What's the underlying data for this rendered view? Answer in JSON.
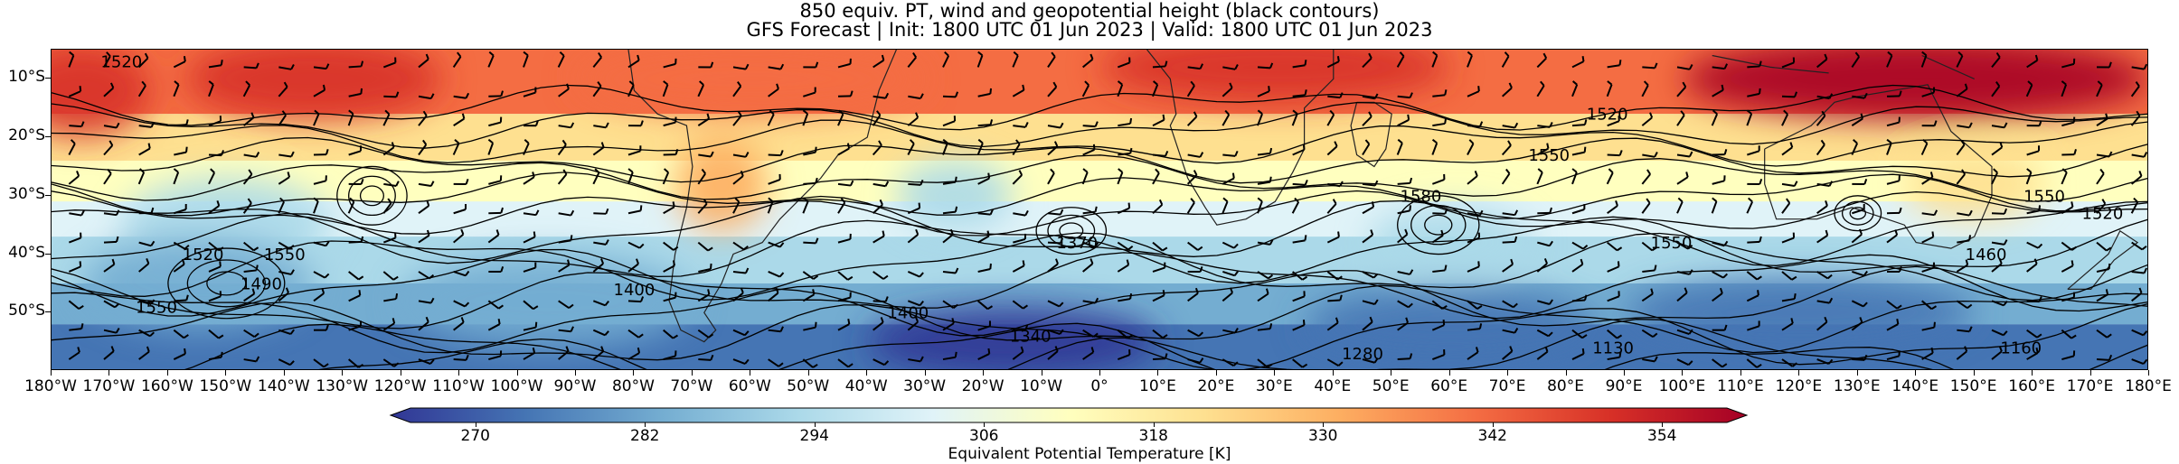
{
  "title_line1": "850 equiv. PT, wind and geopotential height (black contours)",
  "title_line2": "GFS Forecast | Init: 1800 UTC 01 Jun 2023 | Valid: 1800 UTC 01 Jun 2023",
  "map": {
    "projection": "PlateCarree",
    "lon_range": [
      -180,
      180
    ],
    "lat_range": [
      -60,
      -5
    ],
    "lat_ticks": [
      {
        "value": -10,
        "label": "10°S"
      },
      {
        "value": -20,
        "label": "20°S"
      },
      {
        "value": -30,
        "label": "30°S"
      },
      {
        "value": -40,
        "label": "40°S"
      },
      {
        "value": -50,
        "label": "50°S"
      }
    ],
    "lon_ticks": [
      {
        "value": -180,
        "label": "180°W"
      },
      {
        "value": -170,
        "label": "170°W"
      },
      {
        "value": -160,
        "label": "160°W"
      },
      {
        "value": -150,
        "label": "150°W"
      },
      {
        "value": -140,
        "label": "140°W"
      },
      {
        "value": -130,
        "label": "130°W"
      },
      {
        "value": -120,
        "label": "120°W"
      },
      {
        "value": -110,
        "label": "110°W"
      },
      {
        "value": -100,
        "label": "100°W"
      },
      {
        "value": -90,
        "label": "90°W"
      },
      {
        "value": -80,
        "label": "80°W"
      },
      {
        "value": -70,
        "label": "70°W"
      },
      {
        "value": -60,
        "label": "60°W"
      },
      {
        "value": -50,
        "label": "50°W"
      },
      {
        "value": -40,
        "label": "40°W"
      },
      {
        "value": -30,
        "label": "30°W"
      },
      {
        "value": -20,
        "label": "20°W"
      },
      {
        "value": -10,
        "label": "10°W"
      },
      {
        "value": 0,
        "label": "0°"
      },
      {
        "value": 10,
        "label": "10°E"
      },
      {
        "value": 20,
        "label": "20°E"
      },
      {
        "value": 30,
        "label": "30°E"
      },
      {
        "value": 40,
        "label": "40°E"
      },
      {
        "value": 50,
        "label": "50°E"
      },
      {
        "value": 60,
        "label": "60°E"
      },
      {
        "value": 70,
        "label": "70°E"
      },
      {
        "value": 80,
        "label": "80°E"
      },
      {
        "value": 90,
        "label": "90°E"
      },
      {
        "value": 100,
        "label": "100°E"
      },
      {
        "value": 110,
        "label": "110°E"
      },
      {
        "value": 120,
        "label": "120°E"
      },
      {
        "value": 130,
        "label": "130°E"
      },
      {
        "value": 140,
        "label": "140°E"
      },
      {
        "value": 150,
        "label": "150°E"
      },
      {
        "value": 160,
        "label": "160°E"
      },
      {
        "value": 170,
        "label": "170°E"
      },
      {
        "value": 180,
        "label": "180°E"
      }
    ],
    "contour_labels": [
      {
        "text": "1520",
        "lon": -168,
        "lat": -8
      },
      {
        "text": "1520",
        "lon": 87,
        "lat": -17
      },
      {
        "text": "1550",
        "lon": 77,
        "lat": -24
      },
      {
        "text": "1520",
        "lon": 172,
        "lat": -34
      },
      {
        "text": "1550",
        "lon": -140,
        "lat": -41
      },
      {
        "text": "1520",
        "lon": -154,
        "lat": -41
      },
      {
        "text": "1490",
        "lon": -144,
        "lat": -46
      },
      {
        "text": "1550",
        "lon": -162,
        "lat": -50
      },
      {
        "text": "1400",
        "lon": -80,
        "lat": -47
      },
      {
        "text": "1370",
        "lon": -4,
        "lat": -39
      },
      {
        "text": "1580",
        "lon": 55,
        "lat": -31
      },
      {
        "text": "1550",
        "lon": 98,
        "lat": -39
      },
      {
        "text": "1460",
        "lon": 152,
        "lat": -41
      },
      {
        "text": "1400",
        "lon": -33,
        "lat": -51
      },
      {
        "text": "1340",
        "lon": -12,
        "lat": -55
      },
      {
        "text": "1550",
        "lon": 162,
        "lat": -31
      },
      {
        "text": "1280",
        "lon": 45,
        "lat": -58
      },
      {
        "text": "1130",
        "lon": 88,
        "lat": -57
      },
      {
        "text": "1160",
        "lon": 158,
        "lat": -57
      }
    ]
  },
  "colorbar": {
    "label": "Equivalent Potential Temperature [K]",
    "range": [
      264,
      360
    ],
    "tick_labels": [
      "270",
      "282",
      "294",
      "306",
      "318",
      "330",
      "342",
      "354"
    ],
    "tick_values": [
      270,
      282,
      294,
      306,
      318,
      330,
      342,
      354
    ],
    "colormap": "RdYlBu_r",
    "colors": [
      "#313695",
      "#4575b4",
      "#74add1",
      "#abd9e9",
      "#e0f3f8",
      "#ffffbf",
      "#fee090",
      "#fdae61",
      "#f46d43",
      "#d73027",
      "#a50026"
    ]
  }
}
